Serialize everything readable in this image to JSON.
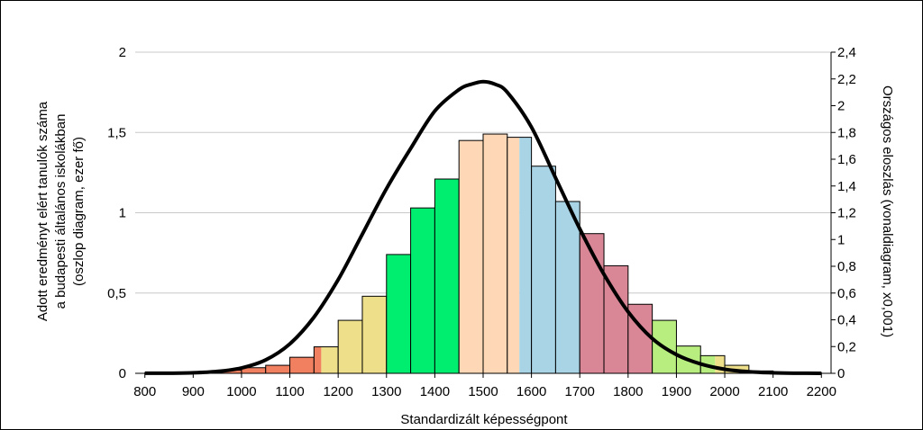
{
  "chart_data": {
    "type": "bar",
    "title": "",
    "xlabel": "Standardizált képességpont",
    "ylabel_left": [
      "Adott eredményt elért tanulók száma",
      "a budapesti általános iskolákban",
      "(oszlop diagram, ezer fő)"
    ],
    "ylabel_right": "Országos eloszlás (vonaldiagram, x0,001)",
    "xlim": [
      780,
      2220
    ],
    "ylim_left": [
      0,
      2
    ],
    "ylim_right": [
      0,
      2.4
    ],
    "x_ticks": [
      "800",
      "900",
      "1000",
      "1100",
      "1200",
      "1300",
      "1400",
      "1500",
      "1600",
      "1700",
      "1800",
      "1900",
      "2000",
      "2100",
      "2200"
    ],
    "y_left_ticks": [
      "0",
      "0,5",
      "1",
      "1,5",
      "2"
    ],
    "y_right_ticks": [
      "0",
      "0,2",
      "0,4",
      "0,6",
      "0,8",
      "1",
      "1,2",
      "1,4",
      "1,6",
      "1,8",
      "2",
      "2,2",
      "2,4"
    ],
    "grid": true,
    "bins": [
      {
        "x0": 800,
        "x1": 850,
        "value": 0.003,
        "color": "#f08060"
      },
      {
        "x0": 850,
        "x1": 900,
        "value": 0.004,
        "color": "#f08060"
      },
      {
        "x0": 900,
        "x1": 950,
        "value": 0.006,
        "color": "#f08060"
      },
      {
        "x0": 950,
        "x1": 1000,
        "value": 0.02,
        "color": "#f08060"
      },
      {
        "x0": 1000,
        "x1": 1050,
        "value": 0.035,
        "color": "#f08060"
      },
      {
        "x0": 1050,
        "x1": 1100,
        "value": 0.05,
        "color": "#f08060"
      },
      {
        "x0": 1100,
        "x1": 1150,
        "value": 0.1,
        "color": "#f08060"
      },
      {
        "x0": 1150,
        "x1": 1200,
        "value": 0.165,
        "color": "#f08060",
        "split_color": "#eee08a",
        "split_at": 1165
      },
      {
        "x0": 1200,
        "x1": 1250,
        "value": 0.33,
        "color": "#eee08a"
      },
      {
        "x0": 1250,
        "x1": 1300,
        "value": 0.48,
        "color": "#eee08a"
      },
      {
        "x0": 1300,
        "x1": 1350,
        "value": 0.74,
        "color": "#00ee70"
      },
      {
        "x0": 1350,
        "x1": 1400,
        "value": 1.03,
        "color": "#00ee70"
      },
      {
        "x0": 1400,
        "x1": 1450,
        "value": 1.21,
        "color": "#00ee70"
      },
      {
        "x0": 1450,
        "x1": 1500,
        "value": 1.45,
        "color": "#fdd7b6"
      },
      {
        "x0": 1500,
        "x1": 1550,
        "value": 1.49,
        "color": "#fdd7b6"
      },
      {
        "x0": 1550,
        "x1": 1600,
        "value": 1.47,
        "color": "#fdd7b6",
        "split_color": "#a8d4e6",
        "split_at": 1575
      },
      {
        "x0": 1600,
        "x1": 1650,
        "value": 1.29,
        "color": "#a8d4e6"
      },
      {
        "x0": 1650,
        "x1": 1700,
        "value": 1.07,
        "color": "#a8d4e6"
      },
      {
        "x0": 1700,
        "x1": 1750,
        "value": 0.87,
        "color": "#d98696"
      },
      {
        "x0": 1750,
        "x1": 1800,
        "value": 0.67,
        "color": "#d98696"
      },
      {
        "x0": 1800,
        "x1": 1850,
        "value": 0.43,
        "color": "#d98696"
      },
      {
        "x0": 1850,
        "x1": 1900,
        "value": 0.33,
        "color": "#b8ee80"
      },
      {
        "x0": 1900,
        "x1": 1950,
        "value": 0.17,
        "color": "#b8ee80"
      },
      {
        "x0": 1950,
        "x1": 2000,
        "value": 0.11,
        "color": "#b8ee80",
        "split_color": "#eee08a",
        "split_at": 1980
      },
      {
        "x0": 2000,
        "x1": 2050,
        "value": 0.05,
        "color": "#eee08a"
      },
      {
        "x0": 2050,
        "x1": 2100,
        "value": 0.015,
        "color": "#eee08a"
      },
      {
        "x0": 2100,
        "x1": 2150,
        "value": 0.006,
        "color": "#eee08a"
      },
      {
        "x0": 2150,
        "x1": 2200,
        "value": 0.003,
        "color": "#eee08a"
      }
    ],
    "line": {
      "x": [
        800,
        850,
        900,
        950,
        1000,
        1050,
        1100,
        1150,
        1200,
        1250,
        1300,
        1350,
        1400,
        1450,
        1475,
        1500,
        1525,
        1550,
        1600,
        1650,
        1700,
        1750,
        1800,
        1850,
        1900,
        1950,
        2000,
        2050,
        2100,
        2150,
        2200
      ],
      "y": [
        0.0004,
        0.001,
        0.004,
        0.014,
        0.04,
        0.1,
        0.22,
        0.42,
        0.7,
        1.04,
        1.38,
        1.68,
        1.96,
        2.12,
        2.16,
        2.18,
        2.16,
        2.1,
        1.84,
        1.46,
        1.08,
        0.74,
        0.46,
        0.26,
        0.14,
        0.07,
        0.03,
        0.012,
        0.004,
        0.001,
        0.0003
      ]
    }
  }
}
